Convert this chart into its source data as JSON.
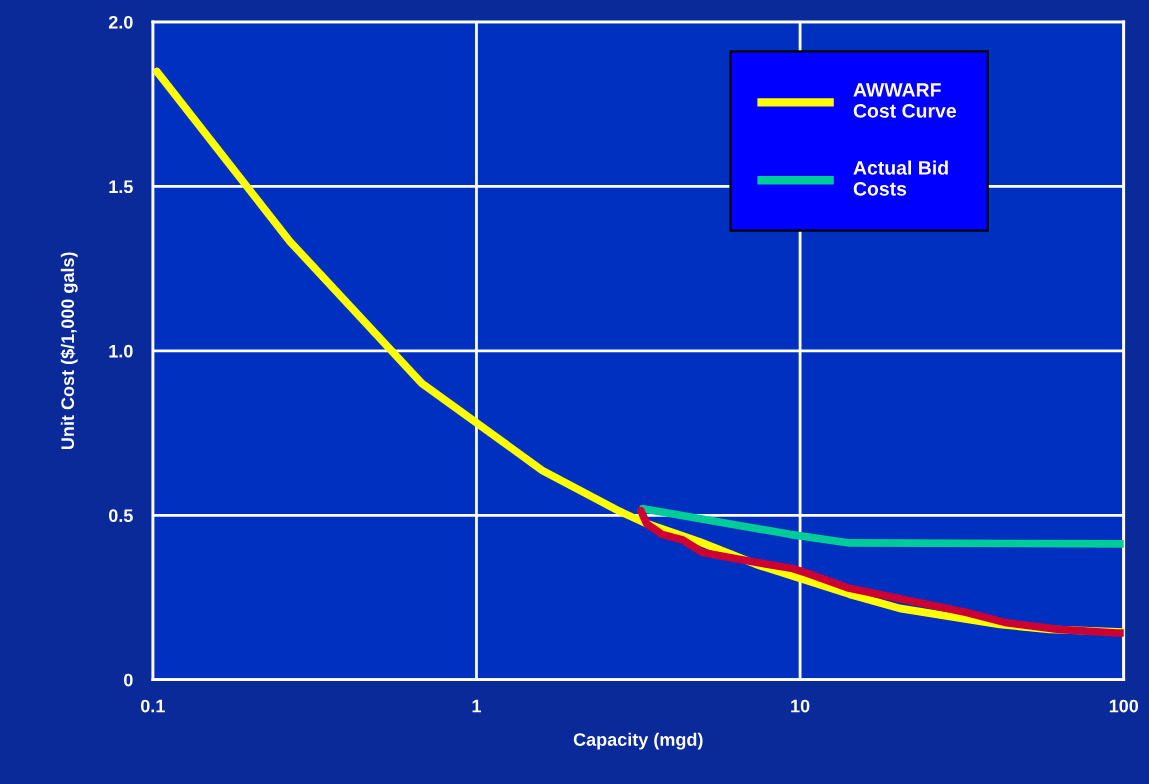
{
  "chart_data": {
    "type": "line",
    "xlabel": "Capacity (mgd)",
    "ylabel": "Unit Cost ($/1,000 gals)",
    "log": "x",
    "xlim": [
      0.1,
      100
    ],
    "xticks": [
      0.1,
      1,
      10,
      100
    ],
    "ylim": [
      0,
      2.0
    ],
    "yticks": [
      {
        "value": 0,
        "label": "0"
      },
      0.5,
      {
        "value": 1,
        "label": "1.0"
      },
      1.5,
      {
        "value": 2,
        "label": "2.0"
      }
    ],
    "grid": true,
    "legend": "top right",
    "line_style": "solid",
    "marker": "none",
    "series": [
      {
        "name": "AWWARF\nCost Curve",
        "color": "#ffff00",
        "x": [
          0.103,
          0.265,
          0.678,
          1.6,
          2.77,
          3.31,
          4.9,
          7.5,
          14.2,
          20.3,
          41.4,
          59,
          100
        ],
        "values": [
          1.849,
          1.333,
          0.901,
          0.636,
          0.512,
          0.477,
          0.419,
          0.347,
          0.26,
          0.217,
          0.168,
          0.153,
          0.145
        ]
      },
      {
        "name": "Actual Bid\nCosts",
        "color": "#00cc99",
        "x": [
          3.27,
          9.3,
          14.2,
          100
        ],
        "values": [
          0.52,
          0.442,
          0.416,
          0.413
        ]
      },
      {
        "color": "#cc0033",
        "x": [
          3.22,
          3.36,
          3.74,
          4.34,
          5.0,
          6.4,
          9.5,
          10.5,
          14.0,
          21.8,
          32.5,
          43.5,
          63,
          95,
          100
        ],
        "values": [
          0.514,
          0.474,
          0.442,
          0.425,
          0.387,
          0.367,
          0.338,
          0.324,
          0.28,
          0.24,
          0.205,
          0.173,
          0.153,
          0.142,
          0.142
        ]
      }
    ]
  }
}
